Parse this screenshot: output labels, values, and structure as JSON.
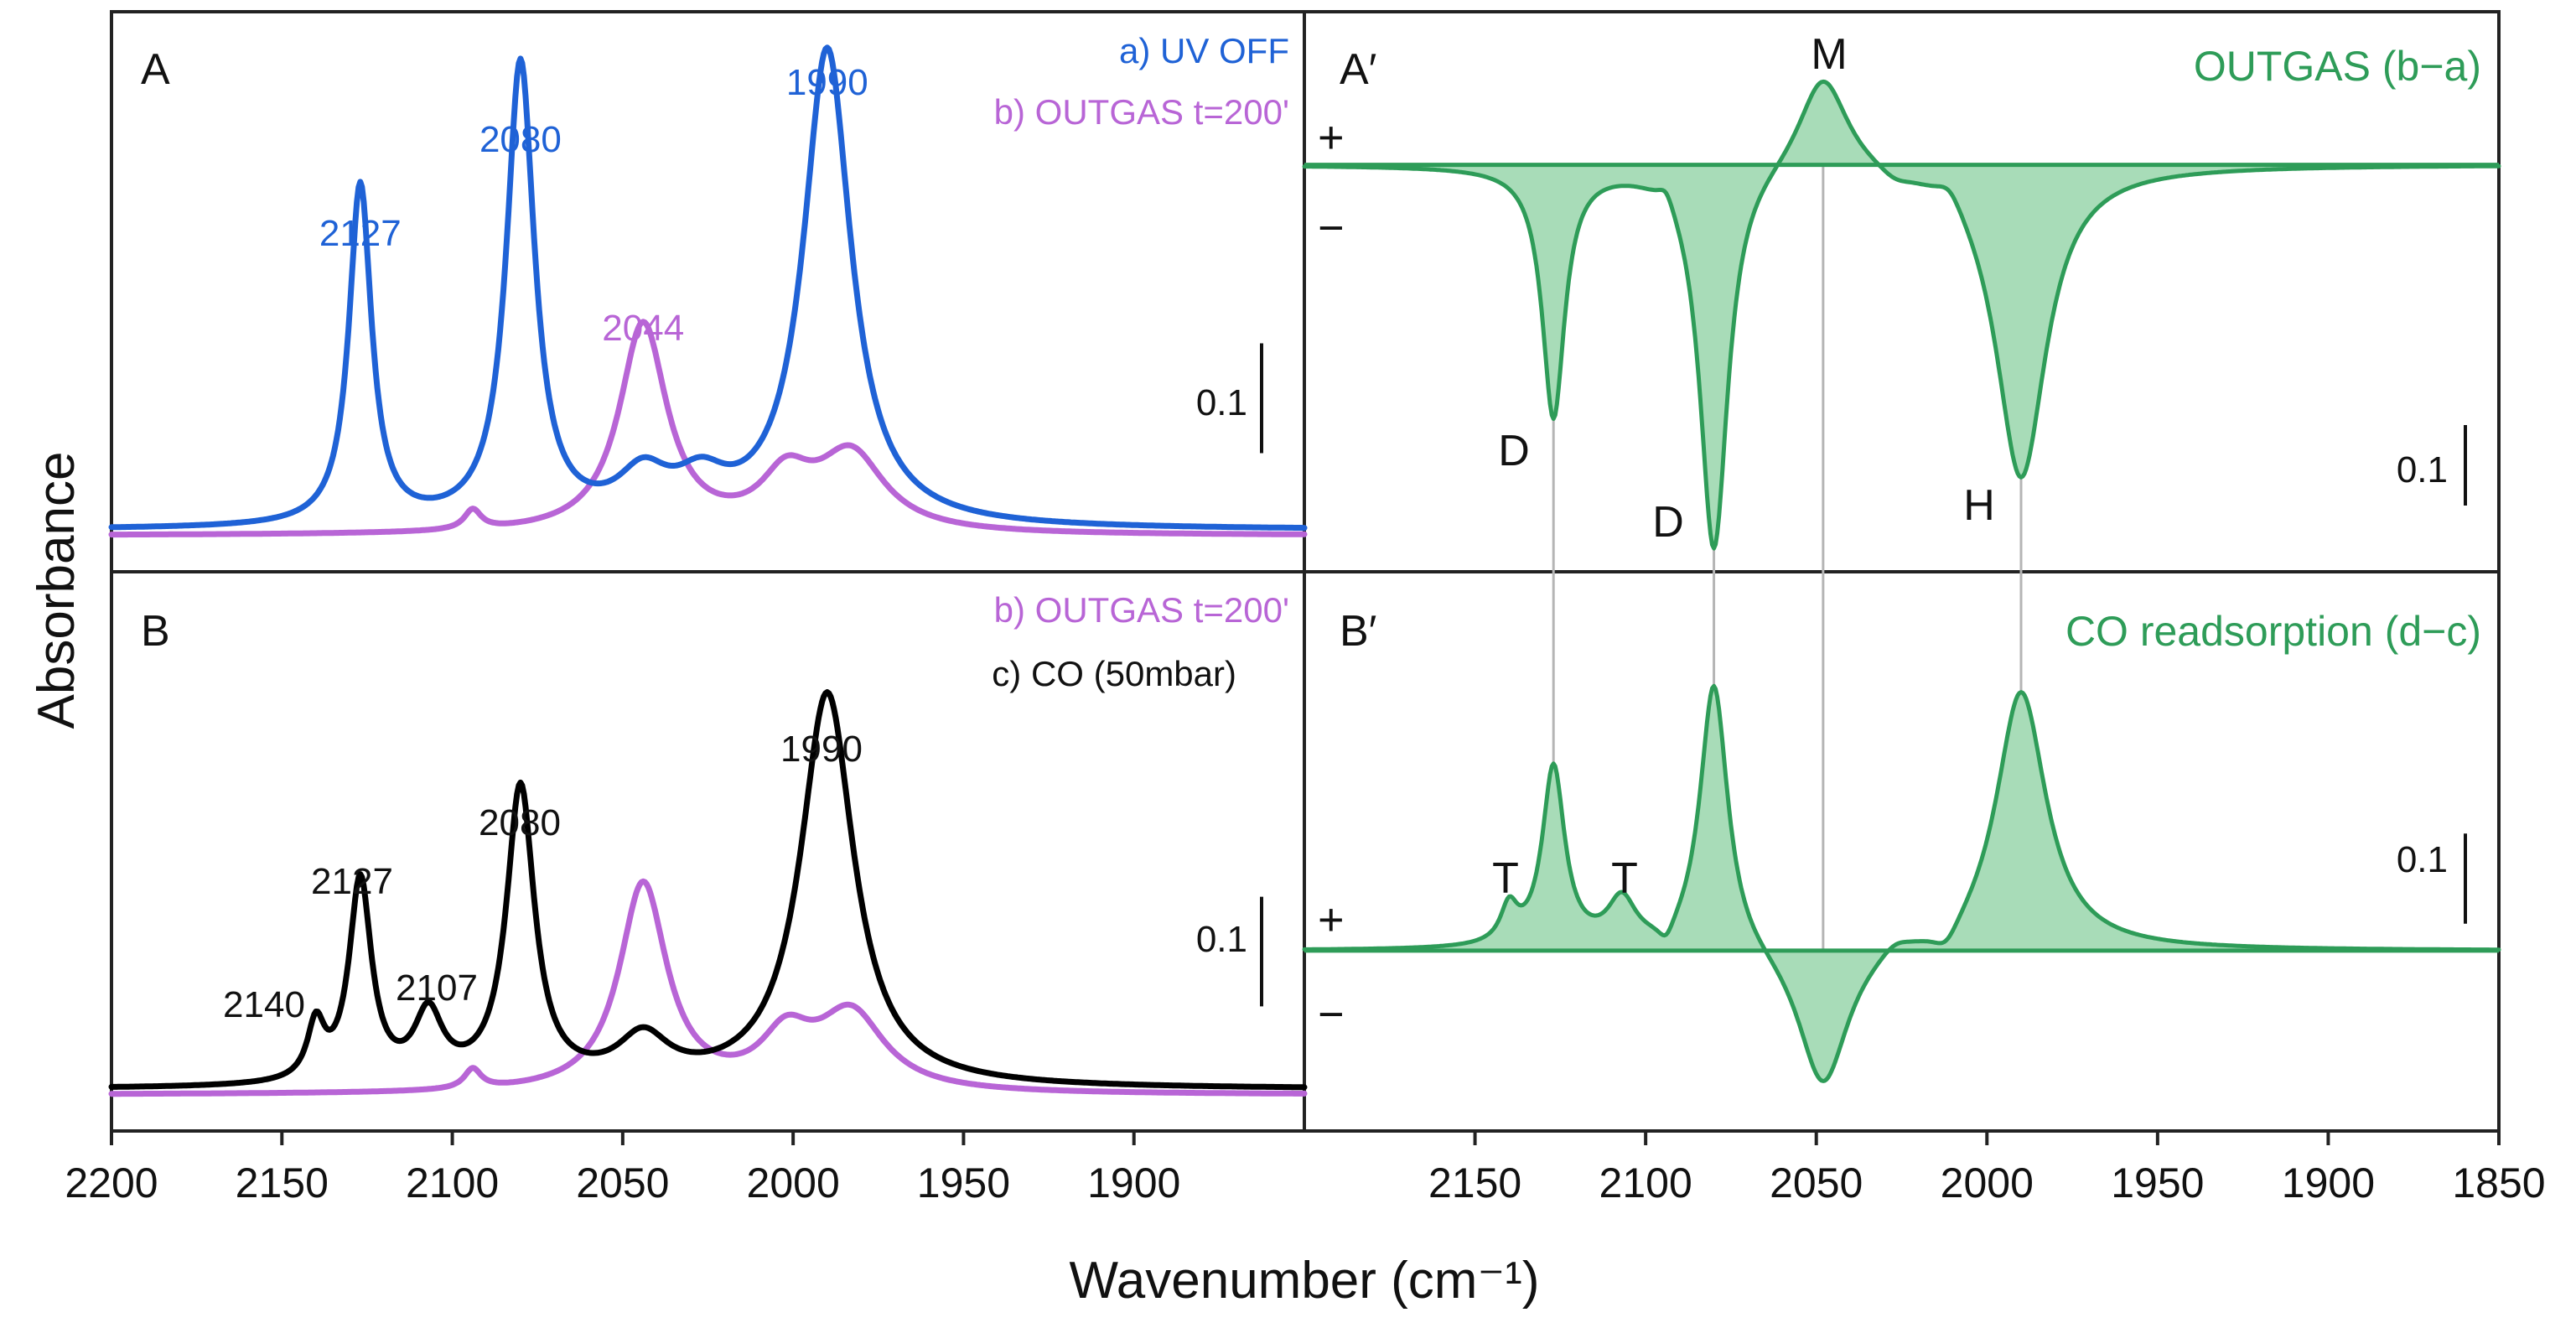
{
  "chart_data": [
    {
      "panel": "A",
      "type": "line",
      "title": "",
      "x_axis": {
        "reversed": true,
        "range": [
          2200,
          1850
        ],
        "ticks": [
          2200,
          2150,
          2100,
          2050,
          2000,
          1950,
          1900
        ]
      },
      "xlabel": "Wavenumber (cm⁻¹)",
      "ylabel": "Absorbance",
      "ylim": [
        0,
        0.5
      ],
      "scale_bar": {
        "label": "0.1",
        "value": 0.1
      },
      "legend": [
        {
          "label": "a) UV OFF",
          "color": "#1f62d6"
        },
        {
          "label": "b) OUTGAS t=200'",
          "color": "#b865d6"
        }
      ],
      "series": [
        {
          "name": "a) UV OFF",
          "color": "#1f62d6",
          "baseline": 0.008,
          "hw_scale": 1.0,
          "peaks": [
            {
              "x": 2127,
              "h": 0.31,
              "w": 4
            },
            {
              "x": 2080,
              "h": 0.42,
              "w": 5
            },
            {
              "x": 2044,
              "h": 0.04,
              "w": 9
            },
            {
              "x": 2027,
              "h": 0.032,
              "w": 9
            },
            {
              "x": 1990,
              "h": 0.435,
              "w": 8.5
            }
          ]
        },
        {
          "name": "b) OUTGAS t=200'",
          "color": "#b865d6",
          "baseline": 0.003,
          "hw_scale": 1.0,
          "peaks": [
            {
              "x": 2094,
              "h": 0.018,
              "w": 3
            },
            {
              "x": 2044,
              "h": 0.19,
              "w": 8.5
            },
            {
              "x": 2002,
              "h": 0.045,
              "w": 9
            },
            {
              "x": 1983,
              "h": 0.07,
              "w": 12
            }
          ]
        }
      ],
      "annotations": [
        {
          "text": "2127",
          "x": 2127,
          "color": "#1f62d6"
        },
        {
          "text": "2080",
          "x": 2080,
          "color": "#1f62d6"
        },
        {
          "text": "2044",
          "x": 2044,
          "color": "#b865d6"
        },
        {
          "text": "1990",
          "x": 1990,
          "color": "#1f62d6"
        }
      ]
    },
    {
      "panel": "B",
      "type": "line",
      "title": "",
      "x_axis": {
        "reversed": true,
        "range": [
          2200,
          1850
        ],
        "ticks": [
          2200,
          2150,
          2100,
          2050,
          2000,
          1950,
          1900
        ]
      },
      "xlabel": "Wavenumber (cm⁻¹)",
      "ylabel": "Absorbance",
      "ylim": [
        0,
        0.5
      ],
      "scale_bar": {
        "label": "0.1",
        "value": 0.1
      },
      "legend": [
        {
          "label": "b) OUTGAS t=200'",
          "color": "#b865d6"
        },
        {
          "label": "c) CO (50mbar)",
          "color": "#000000"
        }
      ],
      "series": [
        {
          "name": "b) OUTGAS t=200'",
          "color": "#b865d6",
          "baseline": 0.003,
          "hw_scale": 1.0,
          "peaks": [
            {
              "x": 2094,
              "h": 0.018,
              "w": 3
            },
            {
              "x": 2044,
              "h": 0.19,
              "w": 8.5
            },
            {
              "x": 2002,
              "h": 0.045,
              "w": 9
            },
            {
              "x": 1983,
              "h": 0.07,
              "w": 12
            }
          ]
        },
        {
          "name": "c) CO (50mbar)",
          "color": "#000000",
          "baseline": 0.008,
          "hw_scale": 1.0,
          "peaks": [
            {
              "x": 2140,
              "h": 0.05,
              "w": 3
            },
            {
              "x": 2127,
              "h": 0.185,
              "w": 4
            },
            {
              "x": 2107,
              "h": 0.06,
              "w": 5
            },
            {
              "x": 2080,
              "h": 0.27,
              "w": 5
            },
            {
              "x": 2044,
              "h": 0.04,
              "w": 9
            },
            {
              "x": 1990,
              "h": 0.36,
              "w": 9.5
            }
          ]
        }
      ],
      "annotations": [
        {
          "text": "2140",
          "x": 2140,
          "color": "#111111"
        },
        {
          "text": "2127",
          "x": 2127,
          "color": "#111111"
        },
        {
          "text": "2107",
          "x": 2107,
          "color": "#111111"
        },
        {
          "text": "2080",
          "x": 2080,
          "color": "#111111"
        },
        {
          "text": "1990",
          "x": 1990,
          "color": "#111111"
        }
      ]
    },
    {
      "panel": "A′",
      "type": "area",
      "title": "OUTGAS (b−a)",
      "x_axis": {
        "reversed": true,
        "range": [
          2200,
          1850
        ],
        "ticks": [
          2150,
          2100,
          2050,
          2000,
          1950,
          1900,
          1850
        ]
      },
      "xlabel": "Wavenumber (cm⁻¹)",
      "ylim": [
        -0.5,
        0.11
      ],
      "scale_bar": {
        "label": "0.1",
        "value": 0.1
      },
      "signs": [
        "+",
        "−"
      ],
      "series": [
        {
          "name": "OUTGAS (b−a)",
          "color": "#2e9c58",
          "fill": "#a8dcb8",
          "baseline": 0,
          "hw_scale": 1.0,
          "peaks": [
            {
              "x": 2127,
              "h": -0.31,
              "w": 4
            },
            {
              "x": 2094,
              "h": 0.022,
              "w": 3
            },
            {
              "x": 2080,
              "h": -0.48,
              "w": 5
            },
            {
              "x": 2048,
              "h": 0.125,
              "w": 9
            },
            {
              "x": 2027,
              "h": -0.012,
              "w": 6
            },
            {
              "x": 2011,
              "h": 0.025,
              "w": 5
            },
            {
              "x": 1990,
              "h": -0.39,
              "w": 9
            }
          ]
        }
      ],
      "features": [
        {
          "text": "D",
          "x": 2127
        },
        {
          "text": "D",
          "x": 2080
        },
        {
          "text": "M",
          "x": 2048
        },
        {
          "text": "H",
          "x": 1990
        }
      ]
    },
    {
      "panel": "B′",
      "type": "area",
      "title": "CO readsorption (d−c)",
      "x_axis": {
        "reversed": true,
        "range": [
          2200,
          1850
        ],
        "ticks": [
          2150,
          2100,
          2050,
          2000,
          1950,
          1900,
          1850
        ]
      },
      "xlabel": "Wavenumber (cm⁻¹)",
      "ylim": [
        -0.17,
        0.34
      ],
      "scale_bar": {
        "label": "0.1",
        "value": 0.1
      },
      "signs": [
        "+",
        "−"
      ],
      "series": [
        {
          "name": "CO readsorption (d−c)",
          "color": "#2e9c58",
          "fill": "#a8dcb8",
          "baseline": 0,
          "hw_scale": 1.0,
          "peaks": [
            {
              "x": 2140,
              "h": 0.04,
              "w": 3
            },
            {
              "x": 2127,
              "h": 0.2,
              "w": 4
            },
            {
              "x": 2107,
              "h": 0.05,
              "w": 5
            },
            {
              "x": 2094,
              "h": -0.022,
              "w": 3
            },
            {
              "x": 2080,
              "h": 0.3,
              "w": 5
            },
            {
              "x": 2048,
              "h": -0.16,
              "w": 9
            },
            {
              "x": 2027,
              "h": 0.014,
              "w": 6
            },
            {
              "x": 2012,
              "h": -0.025,
              "w": 5
            },
            {
              "x": 1990,
              "h": 0.29,
              "w": 9
            }
          ]
        }
      ],
      "features": [
        {
          "text": "T",
          "x": 2140
        },
        {
          "text": "T",
          "x": 2107
        }
      ]
    }
  ],
  "axis_title_x": "Wavenumber (cm⁻¹)",
  "axis_title_y": "Absorbance"
}
